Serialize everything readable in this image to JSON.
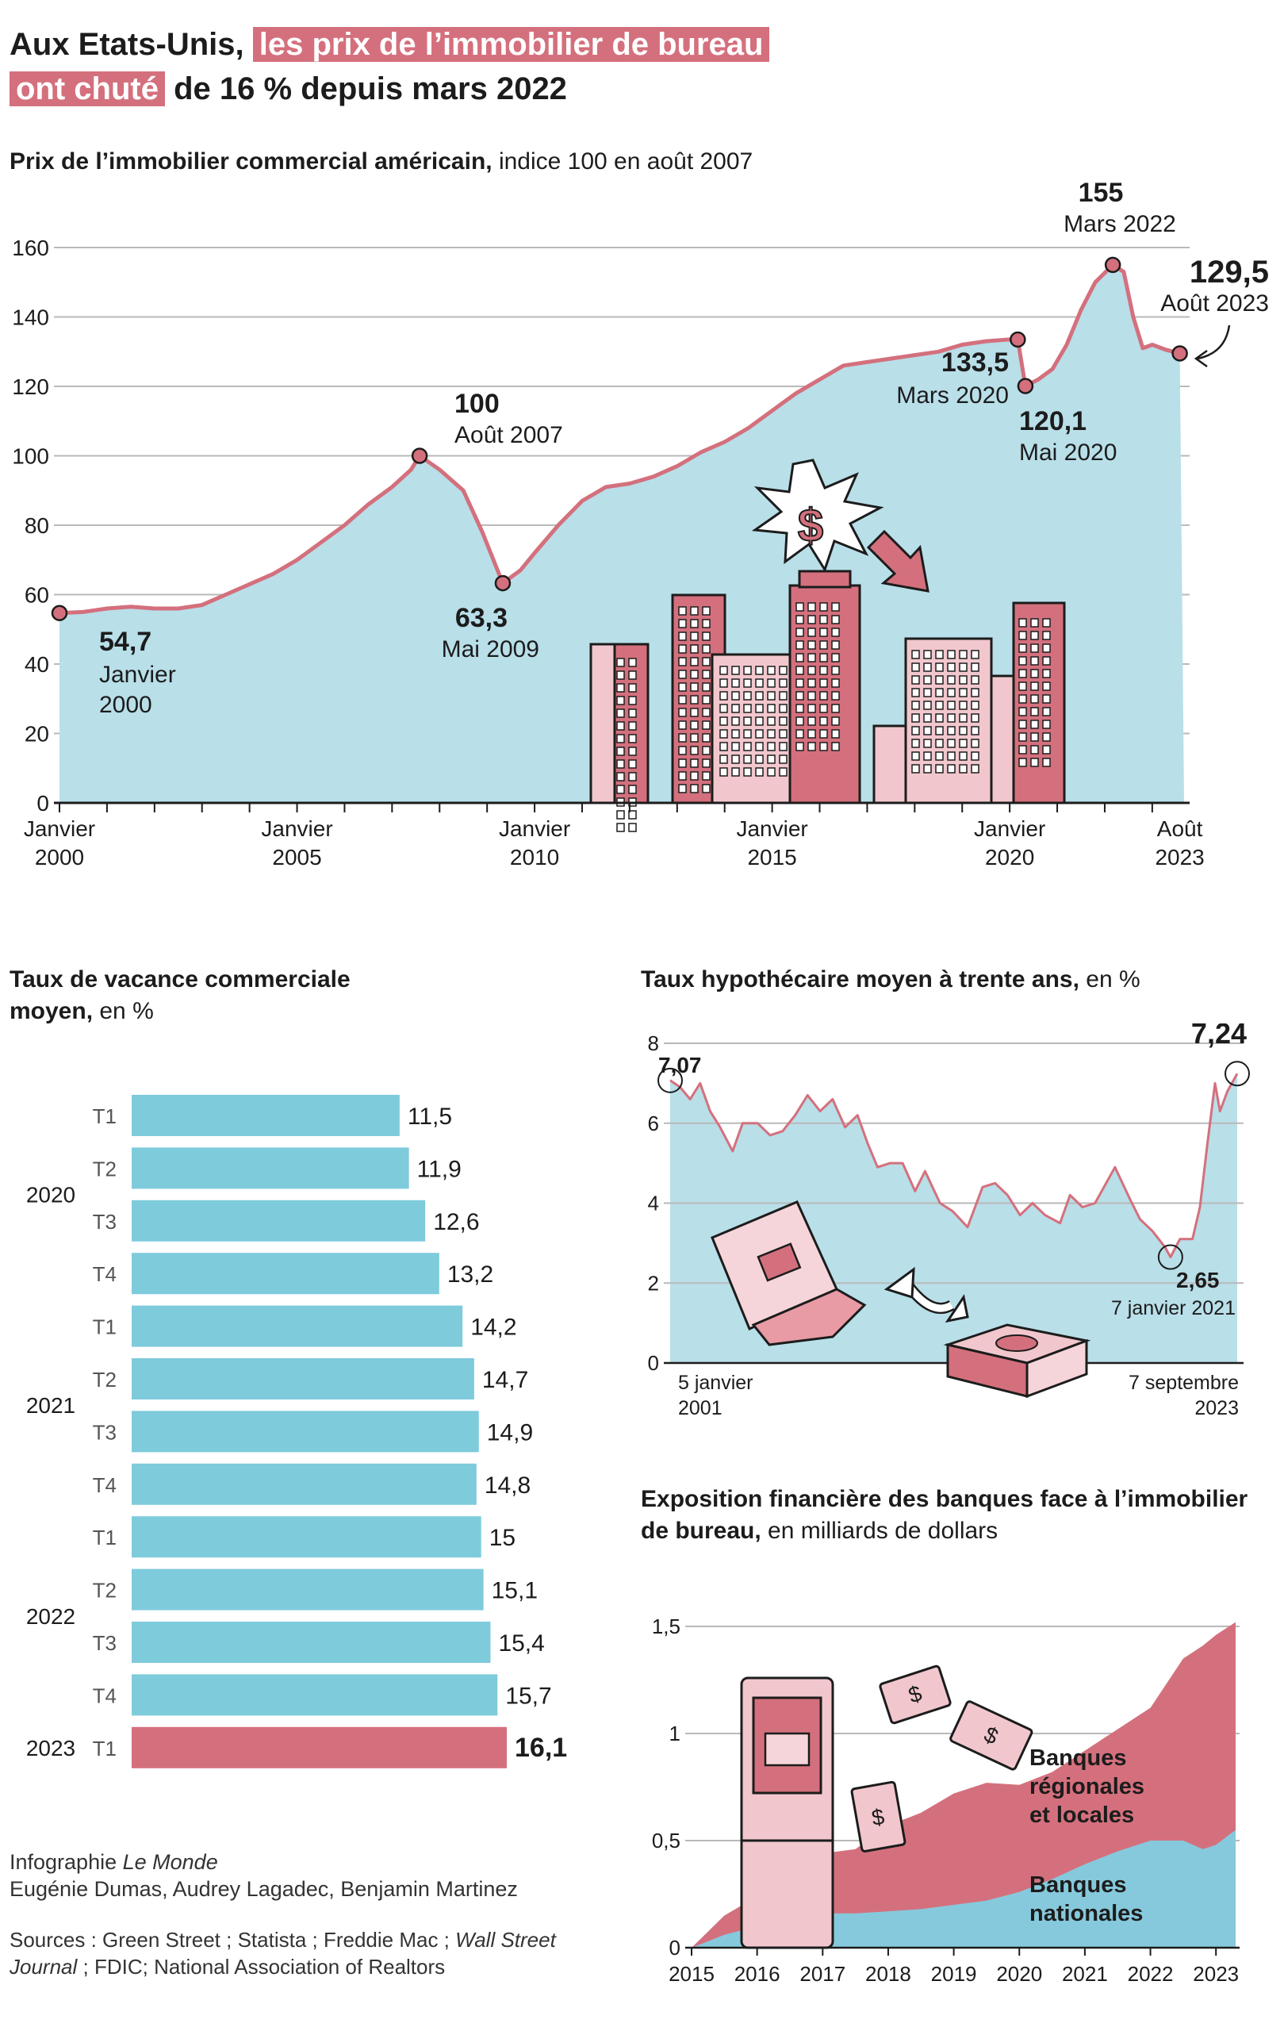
{
  "headline": {
    "part1": "Aux Etats-Unis,",
    "part2": "les prix de l’immobilier de bureau",
    "part3": "ont chuté",
    "part4": "de 16 % depuis mars 2022"
  },
  "colors": {
    "accent": "#d4707d",
    "accent_dark": "#b84e5f",
    "blue_fill": "#b9dfe9",
    "bar_blue": "#7ecbdc",
    "bank_national": "#86c9dc",
    "grid": "#b9b9b9",
    "text": "#1c1c1c"
  },
  "section1": {
    "title_bold": "Prix de l’immobilier commercial américain,",
    "title_rest": "indice 100 en août 2007"
  },
  "section2": {
    "title_bold": "Taux de vacance commerciale moyen,",
    "title_rest": "en %"
  },
  "section3": {
    "title_bold": "Taux hypothécaire moyen à trente ans,",
    "title_rest": "en %"
  },
  "section4": {
    "title_bold": "Exposition financière des banques face à l’immobilier de bureau,",
    "title_rest": "en milliards de dollars"
  },
  "credits": {
    "line1": "Infographie",
    "line1_italic": "Le Monde",
    "line2": "Eugénie Dumas, Audrey Lagadec, Benjamin Martinez"
  },
  "sources": {
    "prefix": "Sources : Green Street ; Statista ; Freddie Mac ;",
    "italic": "Wall Street Journal",
    "suffix": "; FDIC; National Association of Realtors"
  },
  "chart_data": [
    {
      "type": "area",
      "ylim": [
        0,
        160
      ],
      "yticks": [
        "0",
        "20",
        "40",
        "60",
        "80",
        "100",
        "120",
        "140",
        "160"
      ],
      "xlim": [
        2000.0,
        2023.67
      ],
      "xticks": [
        {
          "x": 2000.0,
          "line1": "Janvier",
          "line2": "2000"
        },
        {
          "x": 2005.0,
          "line1": "Janvier",
          "line2": "2005"
        },
        {
          "x": 2010.0,
          "line1": "Janvier",
          "line2": "2010"
        },
        {
          "x": 2015.0,
          "line1": "Janvier",
          "line2": "2015"
        },
        {
          "x": 2020.0,
          "line1": "Janvier",
          "line2": "2020"
        },
        {
          "x": 2023.58,
          "line1": "Août",
          "line2": "2023"
        }
      ],
      "points": [
        [
          2000.0,
          54.7
        ],
        [
          2000.5,
          55
        ],
        [
          2001.0,
          56
        ],
        [
          2001.5,
          56.5
        ],
        [
          2002.0,
          56
        ],
        [
          2002.5,
          56
        ],
        [
          2003.0,
          57
        ],
        [
          2003.5,
          60
        ],
        [
          2004.0,
          63
        ],
        [
          2004.5,
          66
        ],
        [
          2005.0,
          70
        ],
        [
          2005.5,
          75
        ],
        [
          2006.0,
          80
        ],
        [
          2006.5,
          86
        ],
        [
          2007.0,
          91
        ],
        [
          2007.4,
          96
        ],
        [
          2007.58,
          100
        ],
        [
          2008.0,
          96
        ],
        [
          2008.5,
          90
        ],
        [
          2008.9,
          78
        ],
        [
          2009.33,
          63.3
        ],
        [
          2009.7,
          67
        ],
        [
          2010.0,
          72
        ],
        [
          2010.5,
          80
        ],
        [
          2011.0,
          87
        ],
        [
          2011.5,
          91
        ],
        [
          2012.0,
          92
        ],
        [
          2012.5,
          94
        ],
        [
          2013.0,
          97
        ],
        [
          2013.5,
          101
        ],
        [
          2014.0,
          104
        ],
        [
          2014.5,
          108
        ],
        [
          2015.0,
          113
        ],
        [
          2015.5,
          118
        ],
        [
          2016.0,
          122
        ],
        [
          2016.5,
          126
        ],
        [
          2017.0,
          127
        ],
        [
          2017.5,
          128
        ],
        [
          2018.0,
          129
        ],
        [
          2018.5,
          130
        ],
        [
          2019.0,
          132
        ],
        [
          2019.5,
          133
        ],
        [
          2020.0,
          133.5
        ],
        [
          2020.17,
          133.5
        ],
        [
          2020.33,
          120.1
        ],
        [
          2020.6,
          122
        ],
        [
          2020.9,
          125
        ],
        [
          2021.2,
          132
        ],
        [
          2021.5,
          142
        ],
        [
          2021.8,
          150
        ],
        [
          2022.17,
          155
        ],
        [
          2022.4,
          153
        ],
        [
          2022.6,
          140
        ],
        [
          2022.8,
          131
        ],
        [
          2023.0,
          132
        ],
        [
          2023.3,
          130.5
        ],
        [
          2023.58,
          129.5
        ]
      ],
      "annotations": [
        {
          "x": 2000.0,
          "y": 54.7,
          "value": "54,7",
          "label1": "Janvier",
          "label2": "2000"
        },
        {
          "x": 2007.58,
          "y": 100,
          "value": "100",
          "label1": "Août 2007",
          "label2": ""
        },
        {
          "x": 2009.33,
          "y": 63.3,
          "value": "63,3",
          "label1": "Mai 2009",
          "label2": ""
        },
        {
          "x": 2020.17,
          "y": 133.5,
          "value": "133,5",
          "label1": "Mars 2020",
          "label2": ""
        },
        {
          "x": 2020.33,
          "y": 120.1,
          "value": "120,1",
          "label1": "Mai 2020",
          "label2": ""
        },
        {
          "x": 2022.17,
          "y": 155,
          "value": "155",
          "label1": "Mars 2022",
          "label2": ""
        },
        {
          "x": 2023.58,
          "y": 129.5,
          "value": "129,5",
          "label1": "Août 2023",
          "label2": ""
        }
      ]
    },
    {
      "type": "bar",
      "orientation": "horizontal",
      "categories": [
        "T1",
        "T2",
        "T3",
        "T4",
        "T1",
        "T2",
        "T3",
        "T4",
        "T1",
        "T2",
        "T3",
        "T4",
        "T1"
      ],
      "years": [
        {
          "label": "2020",
          "from": 0,
          "to": 3
        },
        {
          "label": "2021",
          "from": 4,
          "to": 7
        },
        {
          "label": "2022",
          "from": 8,
          "to": 11
        },
        {
          "label": "2023",
          "from": 12,
          "to": 12
        }
      ],
      "values": [
        11.5,
        11.9,
        12.6,
        13.2,
        14.2,
        14.7,
        14.9,
        14.8,
        15,
        15.1,
        15.4,
        15.7,
        16.1
      ],
      "value_labels": [
        "11,5",
        "11,9",
        "12,6",
        "13,2",
        "14,2",
        "14,7",
        "14,9",
        "14,8",
        "15",
        "15,1",
        "15,4",
        "15,7",
        "16,1"
      ],
      "highlight_index": 12
    },
    {
      "type": "area",
      "ylim": [
        0,
        8
      ],
      "yticks": [
        "0",
        "2",
        "4",
        "6",
        "8"
      ],
      "xlim": [
        2001.0,
        2023.69
      ],
      "xlabels": [
        {
          "line1": "5 janvier",
          "line2": "2001"
        },
        {
          "line1": "7 septembre",
          "line2": "2023"
        }
      ],
      "points": [
        [
          2001.0,
          7.07
        ],
        [
          2001.4,
          6.9
        ],
        [
          2001.8,
          6.6
        ],
        [
          2002.2,
          7.0
        ],
        [
          2002.6,
          6.3
        ],
        [
          2003.0,
          5.9
        ],
        [
          2003.5,
          5.3
        ],
        [
          2003.9,
          6.0
        ],
        [
          2004.5,
          6.0
        ],
        [
          2005.0,
          5.7
        ],
        [
          2005.5,
          5.8
        ],
        [
          2006.0,
          6.2
        ],
        [
          2006.5,
          6.7
        ],
        [
          2007.0,
          6.3
        ],
        [
          2007.5,
          6.6
        ],
        [
          2008.0,
          5.9
        ],
        [
          2008.5,
          6.2
        ],
        [
          2008.9,
          5.5
        ],
        [
          2009.3,
          4.9
        ],
        [
          2009.8,
          5.0
        ],
        [
          2010.3,
          5.0
        ],
        [
          2010.8,
          4.3
        ],
        [
          2011.2,
          4.8
        ],
        [
          2011.8,
          4.0
        ],
        [
          2012.3,
          3.8
        ],
        [
          2012.9,
          3.4
        ],
        [
          2013.5,
          4.4
        ],
        [
          2014.0,
          4.5
        ],
        [
          2014.5,
          4.2
        ],
        [
          2015.0,
          3.7
        ],
        [
          2015.5,
          4.0
        ],
        [
          2016.0,
          3.7
        ],
        [
          2016.6,
          3.5
        ],
        [
          2017.0,
          4.2
        ],
        [
          2017.5,
          3.9
        ],
        [
          2018.0,
          4.0
        ],
        [
          2018.8,
          4.9
        ],
        [
          2019.4,
          4.1
        ],
        [
          2019.8,
          3.6
        ],
        [
          2020.3,
          3.3
        ],
        [
          2020.8,
          2.9
        ],
        [
          2021.02,
          2.65
        ],
        [
          2021.4,
          3.1
        ],
        [
          2021.9,
          3.1
        ],
        [
          2022.2,
          3.9
        ],
        [
          2022.5,
          5.5
        ],
        [
          2022.8,
          7.0
        ],
        [
          2023.0,
          6.3
        ],
        [
          2023.3,
          6.8
        ],
        [
          2023.69,
          7.24
        ]
      ],
      "annotations": [
        {
          "x": 2001.0,
          "y": 7.07,
          "value": "7,07",
          "label": ""
        },
        {
          "x": 2021.02,
          "y": 2.65,
          "value": "2,65",
          "label": "7 janvier 2021"
        },
        {
          "x": 2023.69,
          "y": 7.24,
          "value": "7,24",
          "label": ""
        }
      ]
    },
    {
      "type": "area",
      "stacked": true,
      "ylim": [
        0,
        1.5
      ],
      "yticks": [
        "0",
        "0,5",
        "1",
        "1,5"
      ],
      "xlim": [
        2015.0,
        2023.3
      ],
      "xticks": [
        "2015",
        "2016",
        "2017",
        "2018",
        "2019",
        "2020",
        "2021",
        "2022",
        "2023"
      ],
      "x": [
        2015.0,
        2015.5,
        2016.0,
        2016.5,
        2017.0,
        2017.5,
        2018.0,
        2018.5,
        2019.0,
        2019.5,
        2020.0,
        2020.5,
        2021.0,
        2021.5,
        2022.0,
        2022.5,
        2022.8,
        2023.0,
        2023.3
      ],
      "series": [
        {
          "name": "Banques nationales",
          "values": [
            0.0,
            0.06,
            0.1,
            0.15,
            0.16,
            0.16,
            0.17,
            0.18,
            0.2,
            0.22,
            0.26,
            0.32,
            0.39,
            0.45,
            0.5,
            0.5,
            0.46,
            0.48,
            0.55
          ]
        },
        {
          "name": "Banques régionales et locales",
          "values": [
            0.0,
            0.09,
            0.14,
            0.18,
            0.28,
            0.3,
            0.4,
            0.45,
            0.52,
            0.55,
            0.5,
            0.5,
            0.53,
            0.57,
            0.62,
            0.85,
            0.95,
            0.98,
            0.97
          ]
        }
      ]
    }
  ]
}
